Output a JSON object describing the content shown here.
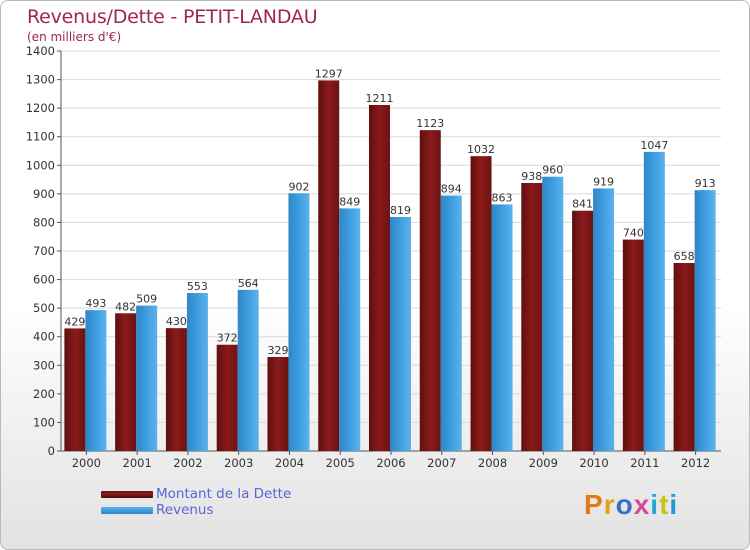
{
  "title": "Revenus/Dette - PETIT-LANDAU",
  "subtitle": "(en milliers d'€)",
  "logo": {
    "text": "Proxiti",
    "colors": [
      "#e07b1a",
      "#e0a21a",
      "#3b6fc5",
      "#d64a94",
      "#2aa3d6",
      "#c8c21a",
      "#1a9ed6"
    ]
  },
  "colors": {
    "dette": "#8b1a1a",
    "revenus": "#3d9ee0"
  },
  "chart_data": {
    "type": "bar",
    "categories": [
      "2000",
      "2001",
      "2002",
      "2003",
      "2004",
      "2005",
      "2006",
      "2007",
      "2008",
      "2009",
      "2010",
      "2011",
      "2012"
    ],
    "series": [
      {
        "name": "Montant de la Dette",
        "values": [
          429,
          482,
          430,
          372,
          329,
          1297,
          1211,
          1123,
          1032,
          938,
          841,
          740,
          658
        ]
      },
      {
        "name": "Revenus",
        "values": [
          493,
          509,
          553,
          564,
          902,
          849,
          819,
          894,
          863,
          960,
          919,
          1047,
          913
        ]
      }
    ],
    "ylim": [
      0,
      1400
    ],
    "yticks": [
      0,
      100,
      200,
      300,
      400,
      500,
      600,
      700,
      800,
      900,
      1000,
      1100,
      1200,
      1300,
      1400
    ],
    "grid": true,
    "legend_position": "bottom-left"
  }
}
